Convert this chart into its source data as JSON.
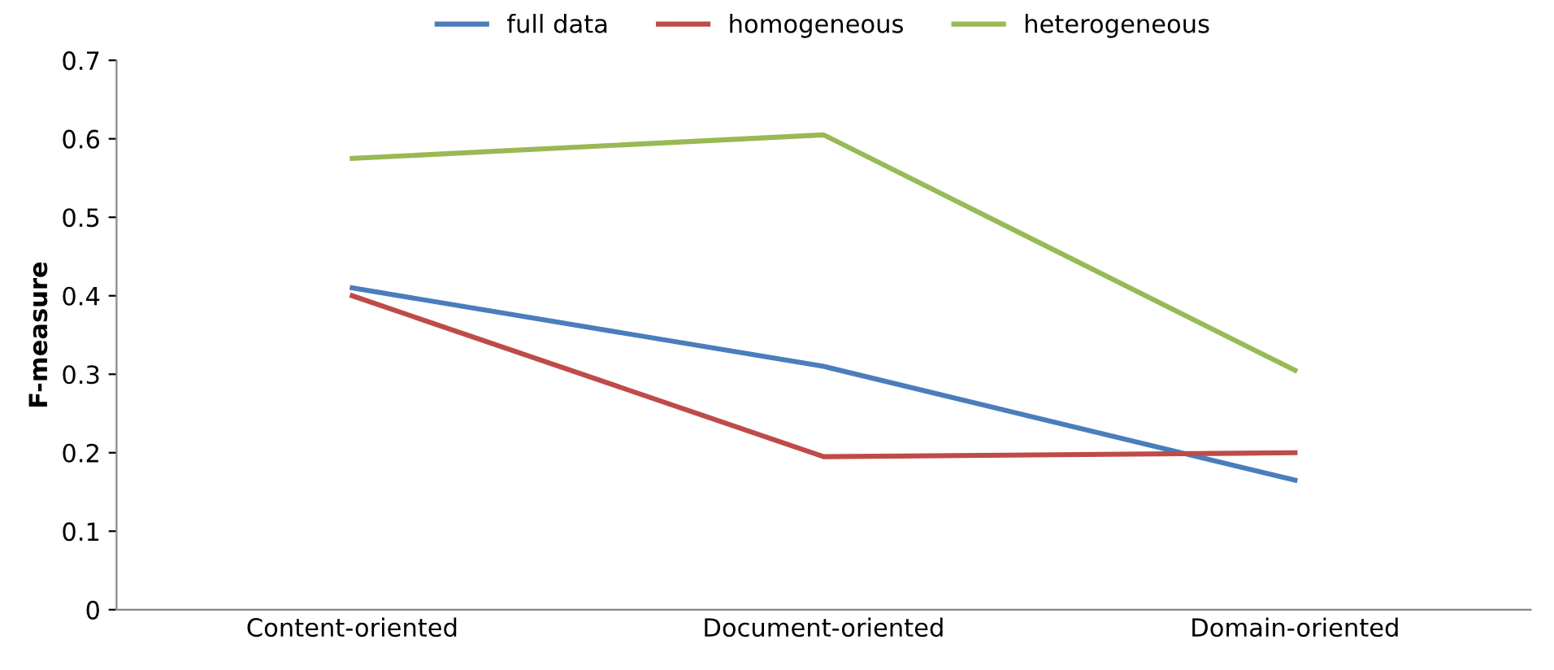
{
  "chart_data": {
    "type": "line",
    "ylabel": "F-measure",
    "categories": [
      "Content-oriented",
      "Document-oriented",
      "Domain-oriented"
    ],
    "series": [
      {
        "name": "full data",
        "color": "#4a7ebb",
        "values": [
          0.41,
          0.31,
          0.165
        ]
      },
      {
        "name": "homogeneous",
        "color": "#be4b48",
        "values": [
          0.4,
          0.195,
          0.2
        ]
      },
      {
        "name": "heterogeneous",
        "color": "#98b954",
        "values": [
          0.575,
          0.605,
          0.305
        ]
      }
    ],
    "ylim": [
      0,
      0.7
    ],
    "yticks": [
      {
        "value": 0,
        "label": "0"
      },
      0.1,
      0.2,
      0.3,
      0.4,
      0.5,
      0.6,
      0.7
    ],
    "grid": false,
    "legend": "top",
    "marker": "none",
    "line_style": "solid"
  }
}
